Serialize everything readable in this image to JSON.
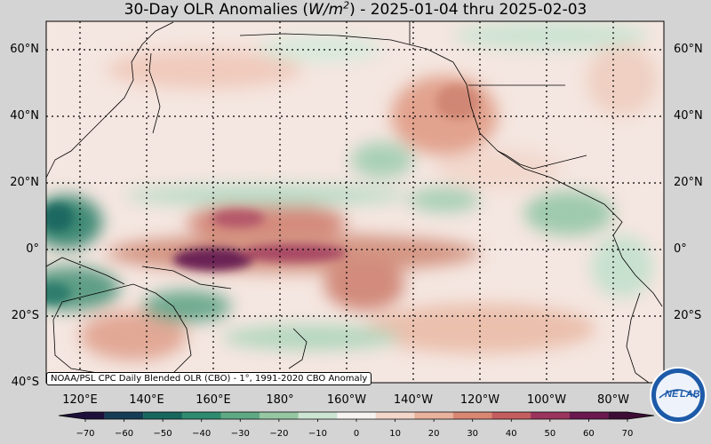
{
  "title": {
    "prefix": "30-Day OLR Anomalies (",
    "unit_base": "W/m",
    "unit_exp": "2",
    "suffix": ") - 2025-01-04 thru 2025-02-03"
  },
  "lat_labels": [
    "60°N",
    "40°N",
    "20°N",
    "0°",
    "20°S",
    "40°S"
  ],
  "lon_labels": [
    "120°E",
    "140°E",
    "160°E",
    "180°",
    "160°W",
    "140°W",
    "120°W",
    "100°W",
    "80°W"
  ],
  "credit": "NOAA/PSL CPC Daily Blended OLR (CBO) - 1°, 1991-2020 CBO Anomaly",
  "colorbar": {
    "ticks": [
      "−70",
      "−60",
      "−50",
      "−40",
      "−30",
      "−20",
      "−10",
      "0",
      "10",
      "20",
      "30",
      "40",
      "50",
      "60",
      "70"
    ],
    "min": -75,
    "max": 75,
    "colors": [
      "#1c0f3a",
      "#153d55",
      "#17675f",
      "#2f8b6f",
      "#5fa884",
      "#95c7a3",
      "#cce5d2",
      "#f6f3f1",
      "#f3d7cb",
      "#e9b29c",
      "#d98673",
      "#c45d5f",
      "#9b345c",
      "#6a184f",
      "#3c0c34"
    ]
  },
  "logo": {
    "text_left": "NE",
    "text_right": "LAB"
  },
  "map_extent": {
    "lon_min": 112,
    "lon_max": 288,
    "lat_min": -41,
    "lat_max": 68
  }
}
